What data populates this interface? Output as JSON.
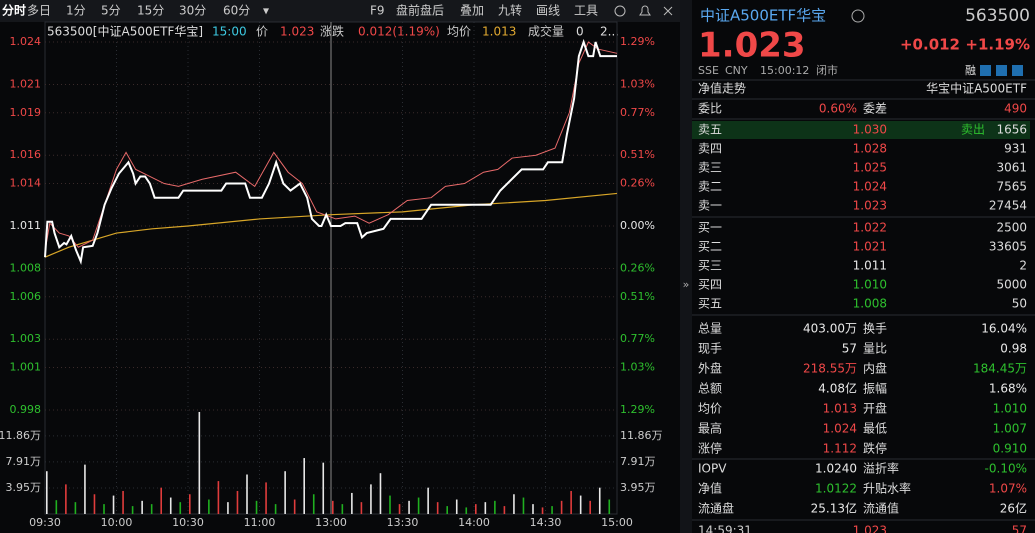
{
  "toolbar": {
    "items": [
      "分时",
      "多日",
      "1分",
      "5分",
      "15分",
      "30分",
      "60分",
      "▾"
    ],
    "tools": [
      "F9",
      "盘前盘后",
      "叠加",
      "九转",
      "画线",
      "工具"
    ]
  },
  "info": {
    "code": "563500[中证A500ETF华宝]",
    "time": "15:00",
    "price_label": "价",
    "price": "1.023",
    "change_label": "涨跌",
    "change": "0.012(1.19%)",
    "avg_label": "均价",
    "avg": "1.013",
    "vol_label": "成交量",
    "vol": "0",
    "more": "2..."
  },
  "chart": {
    "ylim": [
      0.998,
      1.024
    ],
    "yticks": [
      1.024,
      1.021,
      1.019,
      1.016,
      1.014,
      1.011,
      1.008,
      1.006,
      1.003,
      1.001,
      0.998
    ],
    "base": 1.011,
    "pct_labels": [
      "1.29%",
      "1.03%",
      "0.77%",
      "0.51%",
      "0.26%",
      "0.00%",
      "0.26%",
      "0.51%",
      "0.77%",
      "1.03%",
      "1.29%"
    ],
    "xlim": [
      0,
      240
    ],
    "xticks": [
      {
        "value": 0,
        "label": "09:30"
      },
      {
        "value": 30,
        "label": "10:00"
      },
      {
        "value": 60,
        "label": "10:30"
      },
      {
        "value": 90,
        "label": "11:00"
      },
      {
        "value": 120,
        "label": "13:00"
      },
      {
        "value": 150,
        "label": "13:30"
      },
      {
        "value": 180,
        "label": "14:00"
      },
      {
        "value": 210,
        "label": "14:30"
      },
      {
        "value": 240,
        "label": "15:00"
      }
    ],
    "price": {
      "color": "#ffffff",
      "x": [
        0,
        1,
        3,
        4,
        6,
        8,
        9,
        11,
        13,
        15,
        16,
        20,
        22,
        25,
        28,
        31,
        33,
        35,
        37,
        38,
        40,
        42,
        44,
        46,
        53,
        56,
        58,
        66,
        74,
        76,
        84,
        86,
        91,
        94,
        97,
        100,
        103,
        107,
        110,
        112,
        115,
        116,
        118,
        120,
        124,
        126,
        131,
        133,
        135,
        142,
        145,
        158,
        162,
        187,
        189,
        191,
        194,
        200,
        209,
        211,
        217,
        219,
        222,
        224,
        226,
        228,
        230,
        231,
        233,
        235,
        240
      ],
      "values": [
        1.0088,
        1.0113,
        1.0113,
        1.0105,
        1.0095,
        1.0098,
        1.0097,
        1.0103,
        1.0093,
        1.0085,
        1.0095,
        1.0096,
        1.0105,
        1.0125,
        1.0137,
        1.0147,
        1.0151,
        1.0155,
        1.0147,
        1.014,
        1.0145,
        1.0145,
        1.014,
        1.013,
        1.013,
        1.013,
        1.0135,
        1.0135,
        1.0135,
        1.014,
        1.014,
        1.013,
        1.013,
        1.014,
        1.0155,
        1.014,
        1.0135,
        1.014,
        1.013,
        1.0115,
        1.011,
        1.011,
        1.0118,
        1.011,
        1.011,
        1.0112,
        1.0112,
        1.0102,
        1.0105,
        1.0108,
        1.0115,
        1.0115,
        1.0125,
        1.0125,
        1.013,
        1.0135,
        1.014,
        1.015,
        1.015,
        1.0155,
        1.0155,
        1.0175,
        1.02,
        1.023,
        1.024,
        1.023,
        1.023,
        1.024,
        1.023,
        1.023,
        1.023
      ]
    },
    "nav": {
      "color": "#e86a6a",
      "x": [
        0,
        2,
        6,
        10,
        14,
        20,
        25,
        30,
        34,
        38,
        44,
        50,
        56,
        66,
        80,
        88,
        96,
        102,
        108,
        114,
        122,
        130,
        136,
        144,
        152,
        162,
        168,
        176,
        184,
        190,
        196,
        206,
        214,
        220,
        224,
        228,
        232,
        240
      ],
      "values": [
        1.0092,
        1.0112,
        1.0105,
        1.0103,
        1.0095,
        1.01,
        1.0125,
        1.015,
        1.0162,
        1.015,
        1.0145,
        1.014,
        1.0138,
        1.0143,
        1.0148,
        1.0138,
        1.0162,
        1.0148,
        1.014,
        1.012,
        1.0115,
        1.0117,
        1.0112,
        1.0118,
        1.0128,
        1.013,
        1.0138,
        1.014,
        1.0148,
        1.015,
        1.0158,
        1.016,
        1.0165,
        1.019,
        1.0225,
        1.024,
        1.0235,
        1.0232
      ]
    },
    "avg": {
      "color": "#d8a628",
      "x": [
        0,
        10,
        20,
        30,
        45,
        60,
        90,
        120,
        150,
        180,
        210,
        240
      ],
      "values": [
        1.0088,
        1.0095,
        1.01,
        1.0105,
        1.0108,
        1.011,
        1.0115,
        1.0118,
        1.012,
        1.0125,
        1.0128,
        1.0133
      ]
    },
    "vol_ylim": [
      0,
      15.8
    ],
    "vol_yticks": [
      {
        "value": 11.86,
        "label": "11.86万"
      },
      {
        "value": 7.91,
        "label": "7.91万"
      },
      {
        "value": 3.95,
        "label": "3.95万"
      }
    ],
    "vol_step": 4,
    "vol_values": [
      6.5,
      2.1,
      4.5,
      1.8,
      7.5,
      3.0,
      1.5,
      2.8,
      3.5,
      1.2,
      2.0,
      1.5,
      4.0,
      2.5,
      1.8,
      3.0,
      15.5,
      2.2,
      5.0,
      1.8,
      3.5,
      6.0,
      2.0,
      4.8,
      1.5,
      6.5,
      2.2,
      8.5,
      3.0,
      7.8,
      2.0,
      1.5,
      3.2,
      1.8,
      4.5,
      6.2,
      2.8,
      1.5,
      2.0,
      2.5,
      4.0,
      1.8,
      1.2,
      2.2,
      1.0,
      1.5,
      1.8,
      2.0,
      1.2,
      3.0,
      2.5,
      1.5,
      1.0,
      1.2,
      2.0,
      3.5,
      2.8,
      2.0,
      4.0,
      2.2
    ],
    "vol_colors": [
      "#e8e8e8",
      "#20b020",
      "#e03c3c",
      "#20b020",
      "#e8e8e8",
      "#e03c3c",
      "#20b020",
      "#e8e8e8",
      "#e03c3c",
      "#20b020",
      "#e8e8e8",
      "#20b020",
      "#e03c3c",
      "#e8e8e8",
      "#20b020",
      "#e03c3c",
      "#e8e8e8",
      "#20b020",
      "#e03c3c",
      "#e8e8e8",
      "#e03c3c",
      "#e8e8e8",
      "#20b020",
      "#e03c3c",
      "#20b020",
      "#e8e8e8",
      "#e03c3c",
      "#e8e8e8",
      "#20b020",
      "#e8e8e8",
      "#e03c3c",
      "#20b020",
      "#e8e8e8",
      "#e03c3c",
      "#e8e8e8",
      "#e8e8e8",
      "#20b020",
      "#e03c3c",
      "#e8e8e8",
      "#20b020",
      "#e8e8e8",
      "#e03c3c",
      "#20b020",
      "#e8e8e8",
      "#20b020",
      "#e03c3c",
      "#e8e8e8",
      "#20b020",
      "#e03c3c",
      "#e8e8e8",
      "#20b020",
      "#e8e8e8",
      "#e03c3c",
      "#20b020",
      "#e03c3c",
      "#e03c3c",
      "#e8e8e8",
      "#e03c3c",
      "#e8e8e8",
      "#20b020"
    ]
  },
  "panel": {
    "name": "中证A500ETF华宝",
    "code": "563500",
    "price": "1.023",
    "change": "+0.012",
    "pct": "+1.19%",
    "meta": [
      "SSE",
      "CNY",
      "15:00:12",
      "闭市"
    ],
    "margin": "融",
    "nav_title": "净值走势",
    "nav_name": "华宝中证A500ETF",
    "weibi": {
      "l1": "委比",
      "v1": "0.60%",
      "l2": "委差",
      "v2": "490"
    },
    "asks": [
      {
        "label": "卖五",
        "price": "1.030",
        "color": "red",
        "tag": "卖出",
        "qty": "1656"
      },
      {
        "label": "卖四",
        "price": "1.028",
        "color": "red",
        "qty": "931"
      },
      {
        "label": "卖三",
        "price": "1.025",
        "color": "red",
        "qty": "3061"
      },
      {
        "label": "卖二",
        "price": "1.024",
        "color": "red",
        "qty": "7565"
      },
      {
        "label": "卖一",
        "price": "1.023",
        "color": "red",
        "qty": "27454"
      }
    ],
    "bids": [
      {
        "label": "买一",
        "price": "1.022",
        "color": "red",
        "qty": "2500"
      },
      {
        "label": "买二",
        "price": "1.021",
        "color": "red",
        "qty": "33605"
      },
      {
        "label": "买三",
        "price": "1.011",
        "color": "white",
        "qty": "2"
      },
      {
        "label": "买四",
        "price": "1.010",
        "color": "green",
        "qty": "5000"
      },
      {
        "label": "买五",
        "price": "1.008",
        "color": "green",
        "qty": "50"
      }
    ],
    "stats": [
      {
        "l1": "总量",
        "v1": "403.00万",
        "c1": "white",
        "l2": "换手",
        "v2": "16.04%",
        "c2": "white"
      },
      {
        "l1": "现手",
        "v1": "57",
        "c1": "white",
        "l2": "量比",
        "v2": "0.98",
        "c2": "white"
      },
      {
        "l1": "外盘",
        "v1": "218.55万",
        "c1": "red",
        "l2": "内盘",
        "v2": "184.45万",
        "c2": "green"
      },
      {
        "l1": "总额",
        "v1": "4.08亿",
        "c1": "white",
        "l2": "振幅",
        "v2": "1.68%",
        "c2": "white"
      },
      {
        "l1": "均价",
        "v1": "1.013",
        "c1": "red",
        "l2": "开盘",
        "v2": "1.010",
        "c2": "green"
      },
      {
        "l1": "最高",
        "v1": "1.024",
        "c1": "red",
        "l2": "最低",
        "v2": "1.007",
        "c2": "green"
      },
      {
        "l1": "涨停",
        "v1": "1.112",
        "c1": "red",
        "l2": "跌停",
        "v2": "0.910",
        "c2": "green"
      }
    ],
    "stats2": [
      {
        "l1": "IOPV",
        "v1": "1.0240",
        "c1": "white",
        "l2": "溢折率",
        "v2": "-0.10%",
        "c2": "green"
      },
      {
        "l1": "净值",
        "v1": "1.0122",
        "c1": "green",
        "l2": "升贴水率",
        "v2": "1.07%",
        "c2": "red"
      },
      {
        "l1": "流通盘",
        "v1": "25.13亿",
        "c1": "white",
        "l2": "流通值",
        "v2": "26亿",
        "c2": "white"
      }
    ],
    "tick": {
      "time": "14:59:31",
      "price": "1.023",
      "qty": "57"
    }
  }
}
